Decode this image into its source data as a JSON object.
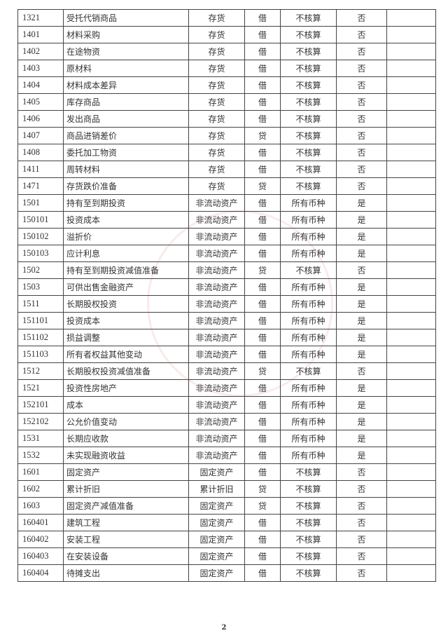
{
  "rows": [
    [
      "1321",
      "受托代销商品",
      "存货",
      "借",
      "不核算",
      "否",
      ""
    ],
    [
      "1401",
      "材料采购",
      "存货",
      "借",
      "不核算",
      "否",
      ""
    ],
    [
      "1402",
      "在途物资",
      "存货",
      "借",
      "不核算",
      "否",
      ""
    ],
    [
      "1403",
      "原材料",
      "存货",
      "借",
      "不核算",
      "否",
      ""
    ],
    [
      "1404",
      "材料成本差异",
      "存货",
      "借",
      "不核算",
      "否",
      ""
    ],
    [
      "1405",
      "库存商品",
      "存货",
      "借",
      "不核算",
      "否",
      ""
    ],
    [
      "1406",
      "发出商品",
      "存货",
      "借",
      "不核算",
      "否",
      ""
    ],
    [
      "1407",
      "商品进销差价",
      "存货",
      "贷",
      "不核算",
      "否",
      ""
    ],
    [
      "1408",
      "委托加工物资",
      "存货",
      "借",
      "不核算",
      "否",
      ""
    ],
    [
      "1411",
      "周转材料",
      "存货",
      "借",
      "不核算",
      "否",
      ""
    ],
    [
      "1471",
      "存货跌价准备",
      "存货",
      "贷",
      "不核算",
      "否",
      ""
    ],
    [
      "1501",
      "持有至到期投资",
      "非流动资产",
      "借",
      "所有币种",
      "是",
      ""
    ],
    [
      "150101",
      "投资成本",
      "非流动资产",
      "借",
      "所有币种",
      "是",
      ""
    ],
    [
      "150102",
      "溢折价",
      "非流动资产",
      "借",
      "所有币种",
      "是",
      ""
    ],
    [
      "150103",
      "应计利息",
      "非流动资产",
      "借",
      "所有币种",
      "是",
      ""
    ],
    [
      "1502",
      "持有至到期投资减值准备",
      "非流动资产",
      "贷",
      "不核算",
      "否",
      ""
    ],
    [
      "1503",
      "可供出售金融资产",
      "非流动资产",
      "借",
      "所有币种",
      "是",
      ""
    ],
    [
      "1511",
      "长期股权投资",
      "非流动资产",
      "借",
      "所有币种",
      "是",
      ""
    ],
    [
      "151101",
      "投资成本",
      "非流动资产",
      "借",
      "所有币种",
      "是",
      ""
    ],
    [
      "151102",
      "损益调整",
      "非流动资产",
      "借",
      "所有币种",
      "是",
      ""
    ],
    [
      "151103",
      "所有者权益其他变动",
      "非流动资产",
      "借",
      "所有币种",
      "是",
      ""
    ],
    [
      "1512",
      "长期股权投资减值准备",
      "非流动资产",
      "贷",
      "不核算",
      "否",
      ""
    ],
    [
      "1521",
      "投资性房地产",
      "非流动资产",
      "借",
      "所有币种",
      "是",
      ""
    ],
    [
      "152101",
      "成本",
      "非流动资产",
      "借",
      "所有币种",
      "是",
      ""
    ],
    [
      "152102",
      "公允价值变动",
      "非流动资产",
      "借",
      "所有币种",
      "是",
      ""
    ],
    [
      "1531",
      "长期应收款",
      "非流动资产",
      "借",
      "所有币种",
      "是",
      ""
    ],
    [
      "1532",
      "未实现融资收益",
      "非流动资产",
      "借",
      "所有币种",
      "是",
      ""
    ],
    [
      "1601",
      "固定资产",
      "固定资产",
      "借",
      "不核算",
      "否",
      ""
    ],
    [
      "1602",
      "累计折旧",
      "累计折旧",
      "贷",
      "不核算",
      "否",
      ""
    ],
    [
      "1603",
      "固定资产减值准备",
      "固定资产",
      "贷",
      "不核算",
      "否",
      ""
    ],
    [
      "160401",
      "建筑工程",
      "固定资产",
      "借",
      "不核算",
      "否",
      ""
    ],
    [
      "160402",
      "安装工程",
      "固定资产",
      "借",
      "不核算",
      "否",
      ""
    ],
    [
      "160403",
      "在安装设备",
      "固定资产",
      "借",
      "不核算",
      "否",
      ""
    ],
    [
      "160404",
      "待摊支出",
      "固定资产",
      "借",
      "不核算",
      "否",
      ""
    ]
  ],
  "page_number": "2",
  "stamp_color": "#dc5050"
}
